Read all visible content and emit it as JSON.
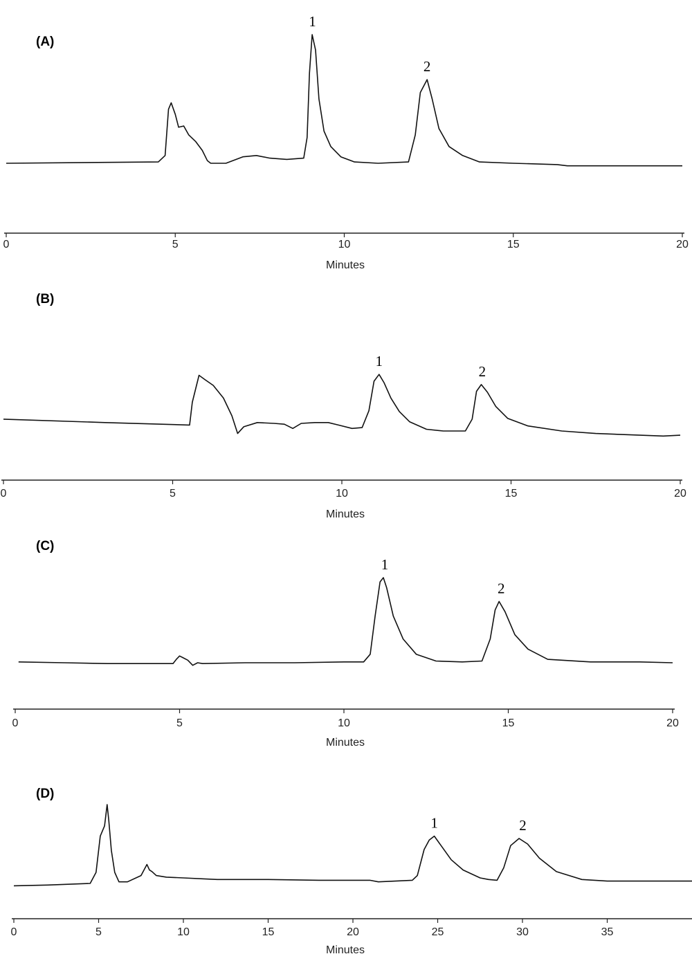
{
  "chart_data": [
    {
      "type": "line",
      "panel": "(A)",
      "xlabel": "Minutes",
      "xlim": [
        0,
        20
      ],
      "xticks": [
        0,
        5,
        10,
        15,
        20
      ],
      "peak_labels": [
        {
          "text": "1",
          "x": 9.1
        },
        {
          "text": "2",
          "x": 12.45
        }
      ],
      "series": [
        {
          "x": [
            0,
            4.5,
            4.7,
            4.8,
            4.88,
            5.0,
            5.1,
            5.25,
            5.4,
            5.6,
            5.8,
            5.95,
            6.05,
            6.5,
            7.0,
            7.4,
            7.8,
            8.3,
            8.8,
            8.9,
            8.97,
            9.05,
            9.15,
            9.25,
            9.4,
            9.6,
            9.9,
            10.3,
            11.0,
            11.9,
            12.1,
            12.25,
            12.45,
            12.6,
            12.8,
            13.1,
            13.5,
            14.0,
            15.0,
            16.3,
            16.6,
            20
          ],
          "y": [
            0,
            0.01,
            0.06,
            0.42,
            0.47,
            0.38,
            0.28,
            0.29,
            0.22,
            0.17,
            0.1,
            0.02,
            0.0,
            0.0,
            0.05,
            0.06,
            0.04,
            0.03,
            0.04,
            0.2,
            0.7,
            1.0,
            0.88,
            0.5,
            0.25,
            0.13,
            0.05,
            0.01,
            0.0,
            0.01,
            0.22,
            0.55,
            0.65,
            0.5,
            0.27,
            0.13,
            0.06,
            0.01,
            0.0,
            -0.01,
            -0.02,
            -0.02
          ]
        }
      ]
    },
    {
      "type": "line",
      "panel": "(B)",
      "xlabel": "Minutes",
      "xlim": [
        0,
        20
      ],
      "xticks": [
        0,
        5,
        10,
        15,
        20
      ],
      "peak_labels": [
        {
          "text": "1",
          "x": 11.1
        },
        {
          "text": "2",
          "x": 14.15
        }
      ],
      "series": [
        {
          "x": [
            0,
            3.0,
            5.5,
            5.58,
            5.78,
            5.95,
            6.2,
            6.5,
            6.75,
            6.92,
            7.1,
            7.5,
            8.0,
            8.3,
            8.55,
            8.8,
            9.2,
            9.6,
            9.9,
            10.3,
            10.6,
            10.8,
            10.95,
            11.1,
            11.25,
            11.45,
            11.7,
            12.0,
            12.5,
            13.0,
            13.65,
            13.85,
            13.98,
            14.12,
            14.3,
            14.55,
            14.9,
            15.5,
            16.5,
            17.5,
            19.5,
            20
          ],
          "y": [
            0.05,
            0.01,
            -0.02,
            0.25,
            0.57,
            0.52,
            0.45,
            0.3,
            0.09,
            -0.12,
            -0.04,
            0.01,
            0.0,
            -0.01,
            -0.06,
            0.0,
            0.01,
            0.01,
            -0.02,
            -0.06,
            -0.05,
            0.15,
            0.5,
            0.58,
            0.48,
            0.3,
            0.14,
            0.02,
            -0.07,
            -0.09,
            -0.09,
            0.05,
            0.38,
            0.46,
            0.37,
            0.2,
            0.06,
            -0.03,
            -0.09,
            -0.12,
            -0.15,
            -0.14
          ]
        }
      ]
    },
    {
      "type": "line",
      "panel": "(C)",
      "xlabel": "Minutes",
      "xlim": [
        0,
        20
      ],
      "xticks": [
        0,
        5,
        10,
        15,
        20
      ],
      "peak_labels": [
        {
          "text": "1",
          "x": 11.2
        },
        {
          "text": "2",
          "x": 14.7
        }
      ],
      "series": [
        {
          "x": [
            0.1,
            1.5,
            2.8,
            4.8,
            4.9,
            5.0,
            5.1,
            5.25,
            5.4,
            5.55,
            5.7,
            7.0,
            8.5,
            10.0,
            10.6,
            10.8,
            10.95,
            11.1,
            11.2,
            11.3,
            11.5,
            11.8,
            12.2,
            12.8,
            13.6,
            14.2,
            14.45,
            14.6,
            14.72,
            14.9,
            15.2,
            15.6,
            16.2,
            17.5,
            19.0,
            20.0
          ],
          "y": [
            0.01,
            0.0,
            -0.01,
            -0.01,
            0.04,
            0.08,
            0.06,
            0.03,
            -0.03,
            0.0,
            -0.01,
            0.0,
            0.0,
            0.01,
            0.01,
            0.1,
            0.55,
            0.95,
            1.0,
            0.88,
            0.55,
            0.28,
            0.1,
            0.02,
            0.01,
            0.02,
            0.28,
            0.62,
            0.72,
            0.6,
            0.33,
            0.16,
            0.04,
            0.01,
            0.01,
            0.0
          ]
        }
      ]
    },
    {
      "type": "line",
      "panel": "(D)",
      "xlabel": "Minutes",
      "xlim": [
        0,
        40
      ],
      "xticks": [
        0,
        5,
        10,
        15,
        20,
        25,
        30,
        35
      ],
      "peak_labels": [
        {
          "text": "1",
          "x": 24.8
        },
        {
          "text": "2",
          "x": 29.9
        }
      ],
      "series": [
        {
          "x": [
            0,
            2.0,
            4.5,
            4.85,
            5.1,
            5.35,
            5.5,
            5.6,
            5.75,
            5.95,
            6.2,
            6.7,
            7.5,
            7.85,
            8.0,
            8.15,
            8.4,
            9.0,
            10.0,
            12.0,
            15.0,
            18.0,
            21.0,
            21.5,
            22.5,
            23.5,
            23.8,
            24.2,
            24.5,
            24.8,
            25.2,
            25.8,
            26.5,
            27.5,
            28.0,
            28.5,
            28.9,
            29.3,
            29.8,
            30.3,
            31.0,
            32.0,
            33.5,
            35.0,
            37.0,
            40.0
          ],
          "y": [
            -0.03,
            -0.02,
            0.0,
            0.14,
            0.6,
            0.73,
            1.0,
            0.8,
            0.42,
            0.14,
            0.02,
            0.02,
            0.1,
            0.24,
            0.17,
            0.15,
            0.1,
            0.08,
            0.07,
            0.05,
            0.05,
            0.04,
            0.04,
            0.02,
            0.03,
            0.04,
            0.1,
            0.43,
            0.55,
            0.6,
            0.48,
            0.3,
            0.17,
            0.07,
            0.05,
            0.04,
            0.2,
            0.48,
            0.57,
            0.5,
            0.32,
            0.15,
            0.05,
            0.03,
            0.03,
            0.03
          ]
        }
      ]
    }
  ]
}
